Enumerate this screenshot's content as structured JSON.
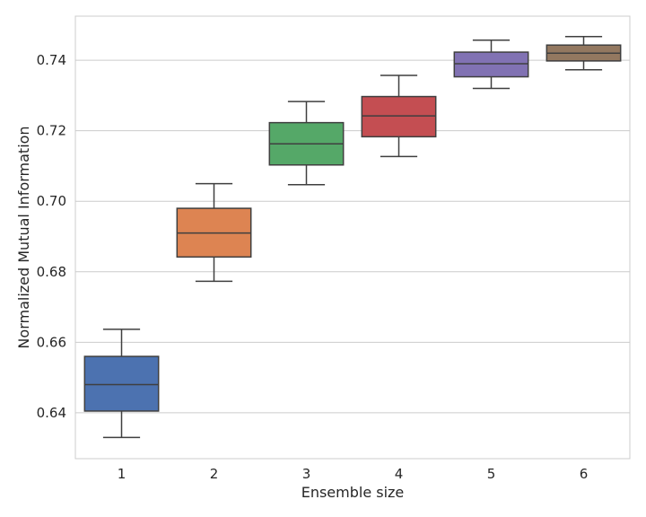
{
  "chart_data": {
    "type": "box",
    "title": "",
    "xlabel": "Ensemble size",
    "ylabel": "Normalized Mutual Information",
    "categories": [
      "1",
      "2",
      "3",
      "4",
      "5",
      "6"
    ],
    "ylim": [
      0.627,
      0.7525
    ],
    "yticks": [
      0.64,
      0.66,
      0.68,
      0.7,
      0.72,
      0.74
    ],
    "ytick_labels": [
      "0.64",
      "0.66",
      "0.68",
      "0.70",
      "0.72",
      "0.74"
    ],
    "grid": "horizontal",
    "boxes": [
      {
        "category": "1",
        "whisker_low": 0.633,
        "q1": 0.6405,
        "median": 0.648,
        "q3": 0.656,
        "whisker_high": 0.6637,
        "color": "#4c72b0"
      },
      {
        "category": "2",
        "whisker_low": 0.6773,
        "q1": 0.6842,
        "median": 0.691,
        "q3": 0.698,
        "whisker_high": 0.705,
        "color": "#dd8452"
      },
      {
        "category": "3",
        "whisker_low": 0.7047,
        "q1": 0.7103,
        "median": 0.7163,
        "q3": 0.7223,
        "whisker_high": 0.7283,
        "color": "#55a868"
      },
      {
        "category": "4",
        "whisker_low": 0.7127,
        "q1": 0.7183,
        "median": 0.7242,
        "q3": 0.7297,
        "whisker_high": 0.7357,
        "color": "#c44e52"
      },
      {
        "category": "5",
        "whisker_low": 0.732,
        "q1": 0.7353,
        "median": 0.739,
        "q3": 0.7423,
        "whisker_high": 0.7457,
        "color": "#8172b3"
      },
      {
        "category": "6",
        "whisker_low": 0.7373,
        "q1": 0.7398,
        "median": 0.742,
        "q3": 0.7443,
        "whisker_high": 0.7467,
        "color": "#937860"
      }
    ]
  }
}
